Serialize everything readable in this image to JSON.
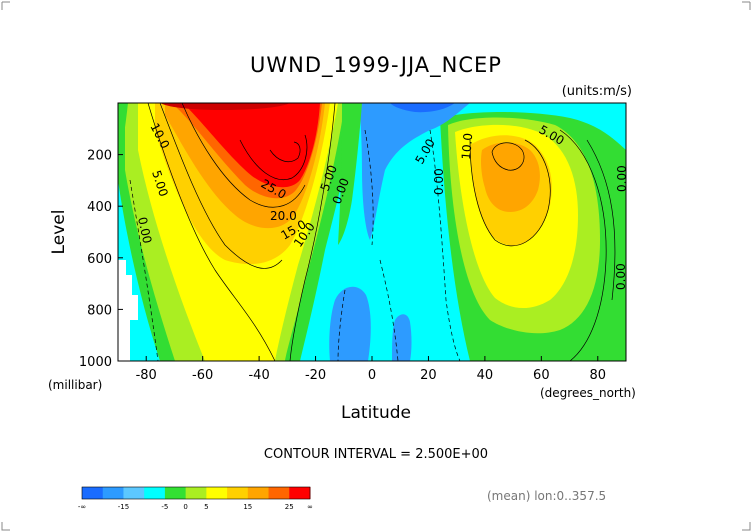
{
  "chart_data": {
    "type": "heatmap",
    "subtype": "filled-contour",
    "title": "UWND_1999-JJA_NCEP",
    "units": "(units:m/s)",
    "xlabel": "Latitude",
    "ylabel": "Level",
    "x_units": "(degrees_north)",
    "y_units": "(millibar)",
    "xlim": [
      -90,
      90
    ],
    "ylim": [
      1000,
      0
    ],
    "x_ticks": [
      "-80",
      "-60",
      "-40",
      "-20",
      "0",
      "20",
      "40",
      "60",
      "80"
    ],
    "y_ticks": [
      "200",
      "400",
      "600",
      "800",
      "1000"
    ],
    "contour_interval_text": "CONTOUR INTERVAL = 2.500E+00",
    "contour_interval": 2.5,
    "contour_labels": [
      "10.0",
      "5.00",
      "0.00",
      "25.0",
      "20.0",
      "15.0",
      "10.0",
      "5.00",
      "0.00",
      "5.00",
      "0.00",
      "10.0",
      "5.00",
      "0.00",
      "0.00"
    ],
    "jets": [
      {
        "lat": -30,
        "level": 200,
        "max": 32.5
      },
      {
        "lat": 45,
        "level": 200,
        "max": 22.5
      }
    ],
    "colorbar": {
      "labels": [
        "-∞",
        "-15",
        "-5",
        "0",
        "5",
        "15",
        "25",
        "∞"
      ],
      "colors": [
        "#1a6cff",
        "#2d9bff",
        "#5cc8ff",
        "#00ffff",
        "#33e033",
        "#aaee22",
        "#ffff00",
        "#ffd000",
        "#ffa500",
        "#ff6600",
        "#ff0000"
      ]
    },
    "footnote": "(mean) lon:0..357.5",
    "grid": false,
    "legend": "bottom-left"
  }
}
